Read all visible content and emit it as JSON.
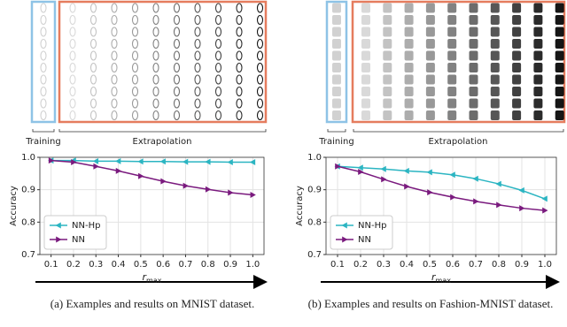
{
  "chart_data": [
    {
      "type": "line",
      "xlabel": {
        "base": "r",
        "sub": "max"
      },
      "ylabel": "Accuracy",
      "xlim": [
        0.05,
        1.05
      ],
      "xticks": [
        0.1,
        0.2,
        0.3,
        0.4,
        0.5,
        0.6,
        0.7,
        0.8,
        0.9,
        {
          "value": 1,
          "label": "1.0"
        }
      ],
      "ylim": [
        0.7,
        1.0
      ],
      "yticks": [
        0.7,
        0.8,
        0.9,
        {
          "value": 1,
          "label": "1.0"
        }
      ],
      "grid": true,
      "legend": "lower left",
      "x": [
        0.1,
        0.2,
        0.3,
        0.4,
        0.5,
        0.6,
        0.7,
        0.8,
        0.9,
        1.0
      ],
      "series": [
        {
          "name": "NN-Hp",
          "color": "#2bb5c2",
          "marker": "<",
          "values": [
            0.99,
            0.99,
            0.988,
            0.988,
            0.987,
            0.987,
            0.986,
            0.986,
            0.985,
            0.985
          ]
        },
        {
          "name": "NN",
          "color": "#7a1a7e",
          "marker": ">",
          "values": [
            0.99,
            0.985,
            0.972,
            0.958,
            0.942,
            0.926,
            0.912,
            0.901,
            0.891,
            0.884
          ]
        }
      ]
    },
    {
      "type": "line",
      "xlabel": {
        "base": "r",
        "sub": "max"
      },
      "ylabel": "Accuracy",
      "xlim": [
        0.05,
        1.05
      ],
      "xticks": [
        0.1,
        0.2,
        0.3,
        0.4,
        0.5,
        0.6,
        0.7,
        0.8,
        0.9,
        {
          "value": 1,
          "label": "1.0"
        }
      ],
      "ylim": [
        0.7,
        1.0
      ],
      "yticks": [
        0.7,
        0.8,
        0.9,
        {
          "value": 1,
          "label": "1.0"
        }
      ],
      "grid": true,
      "legend": "lower left",
      "x": [
        0.1,
        0.2,
        0.3,
        0.4,
        0.5,
        0.6,
        0.7,
        0.8,
        0.9,
        1.0
      ],
      "series": [
        {
          "name": "NN-Hp",
          "color": "#2bb5c2",
          "marker": "<",
          "values": [
            0.972,
            0.968,
            0.964,
            0.958,
            0.954,
            0.946,
            0.934,
            0.918,
            0.898,
            0.872
          ]
        },
        {
          "name": "NN",
          "color": "#7a1a7e",
          "marker": ">",
          "values": [
            0.972,
            0.955,
            0.932,
            0.91,
            0.892,
            0.877,
            0.864,
            0.853,
            0.843,
            0.836
          ]
        }
      ]
    }
  ],
  "panels": [
    {
      "training": "Training",
      "extrapolation": "Extrapolation",
      "caption": "(a) Examples and results on MNIST dataset."
    },
    {
      "training": "Training",
      "extrapolation": "Extrapolation",
      "caption": "(b) Examples and results on Fashion-MNIST dataset."
    }
  ]
}
